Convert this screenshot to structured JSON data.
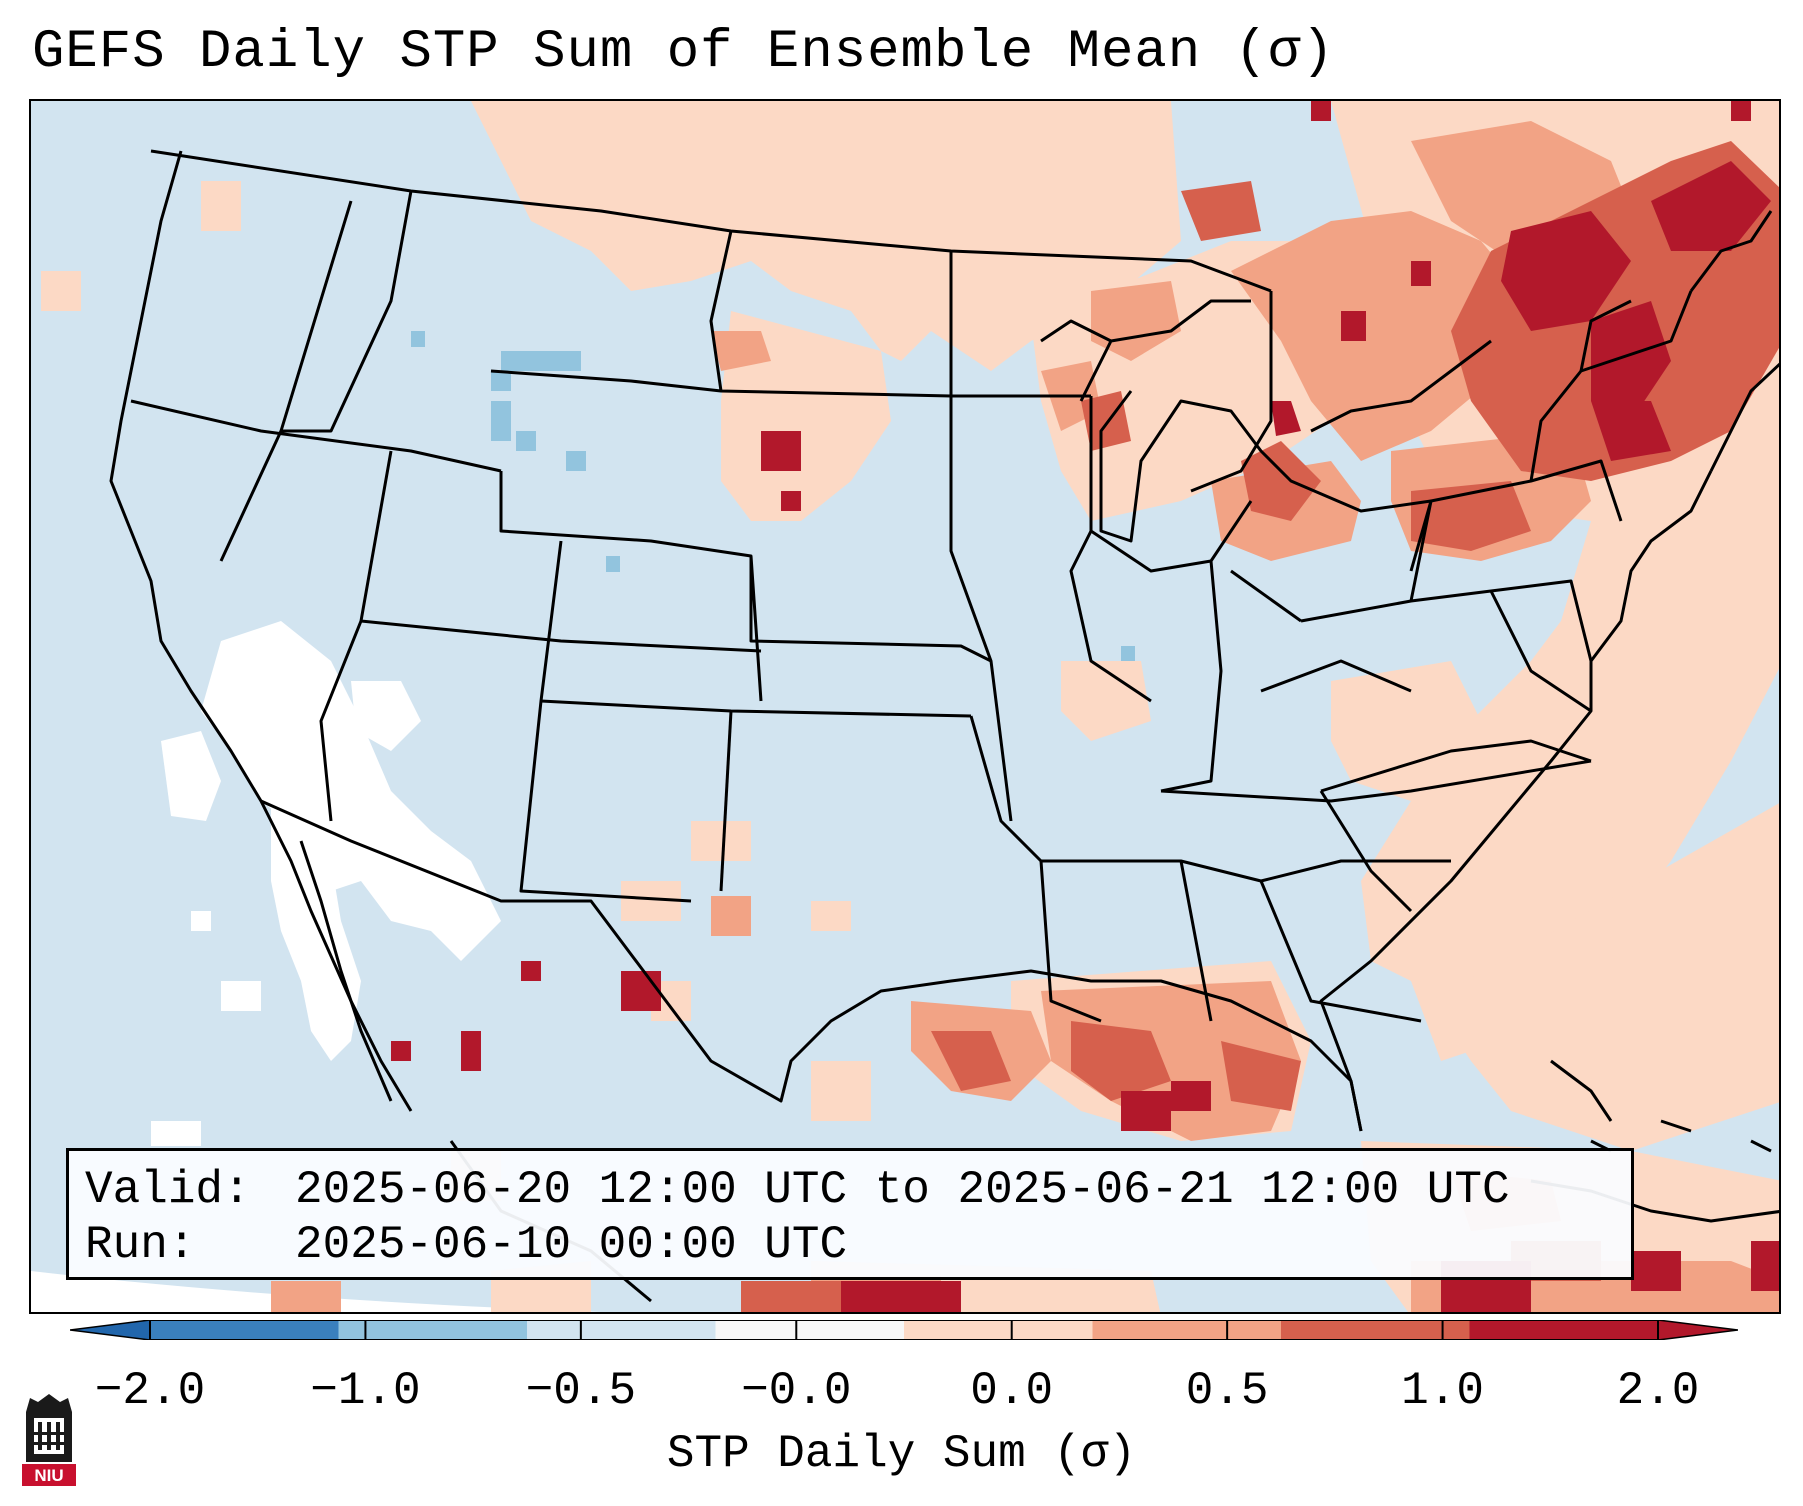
{
  "title": "GEFS Daily STP Sum of Ensemble Mean (σ)",
  "valid_label": "Valid:",
  "valid_value": "2025-06-20 12:00 UTC to 2025-06-21 12:00 UTC",
  "run_label": "Run:",
  "run_value": "2025-06-10 00:00 UTC",
  "colorbar": {
    "label": "STP Daily Sum (σ)",
    "ticks": [
      "−2.0",
      "−1.0",
      "−0.5",
      "−0.0",
      "0.0",
      "0.5",
      "1.0",
      "2.0"
    ],
    "colors": [
      "#3a80bd",
      "#92c4de",
      "#d2e4f0",
      "#f7f7f7",
      "#fcd9c5",
      "#f2a385",
      "#d6604d",
      "#b2182b"
    ],
    "extend_low_color": "#2166ac",
    "extend_high_color": "#b2182b"
  },
  "logo_text": "NIU",
  "map_colors": {
    "background": "#d2e4f0",
    "white": "#ffffff",
    "light_orange": "#fcd9c5",
    "orange": "#f2a385",
    "red": "#d6604d",
    "dark_red": "#b2182b",
    "light_blue": "#92c4de"
  }
}
